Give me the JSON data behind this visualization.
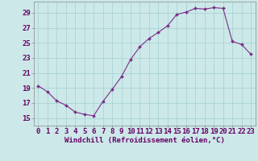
{
  "hours": [
    0,
    1,
    2,
    3,
    4,
    5,
    6,
    7,
    8,
    9,
    10,
    11,
    12,
    13,
    14,
    15,
    16,
    17,
    18,
    19,
    20,
    21,
    22,
    23
  ],
  "values": [
    19.3,
    18.5,
    17.3,
    16.7,
    15.8,
    15.5,
    15.3,
    17.2,
    18.8,
    20.5,
    22.8,
    24.5,
    25.6,
    26.4,
    27.3,
    28.8,
    29.1,
    29.6,
    29.5,
    29.7,
    29.6,
    25.2,
    24.8,
    23.5
  ],
  "line_color": "#7B2D8B",
  "marker_color": "#7B2D8B",
  "bg_color": "#cce8e8",
  "grid_color": "#aad4d4",
  "xlabel": "Windchill (Refroidissement éolien,°C)",
  "ylabel_ticks": [
    15,
    17,
    19,
    21,
    23,
    25,
    27,
    29
  ],
  "ylim": [
    14.0,
    30.5
  ],
  "xlim": [
    -0.5,
    23.5
  ],
  "font_color": "#660066",
  "tick_fontsize": 6.5,
  "xlabel_fontsize": 6.5
}
